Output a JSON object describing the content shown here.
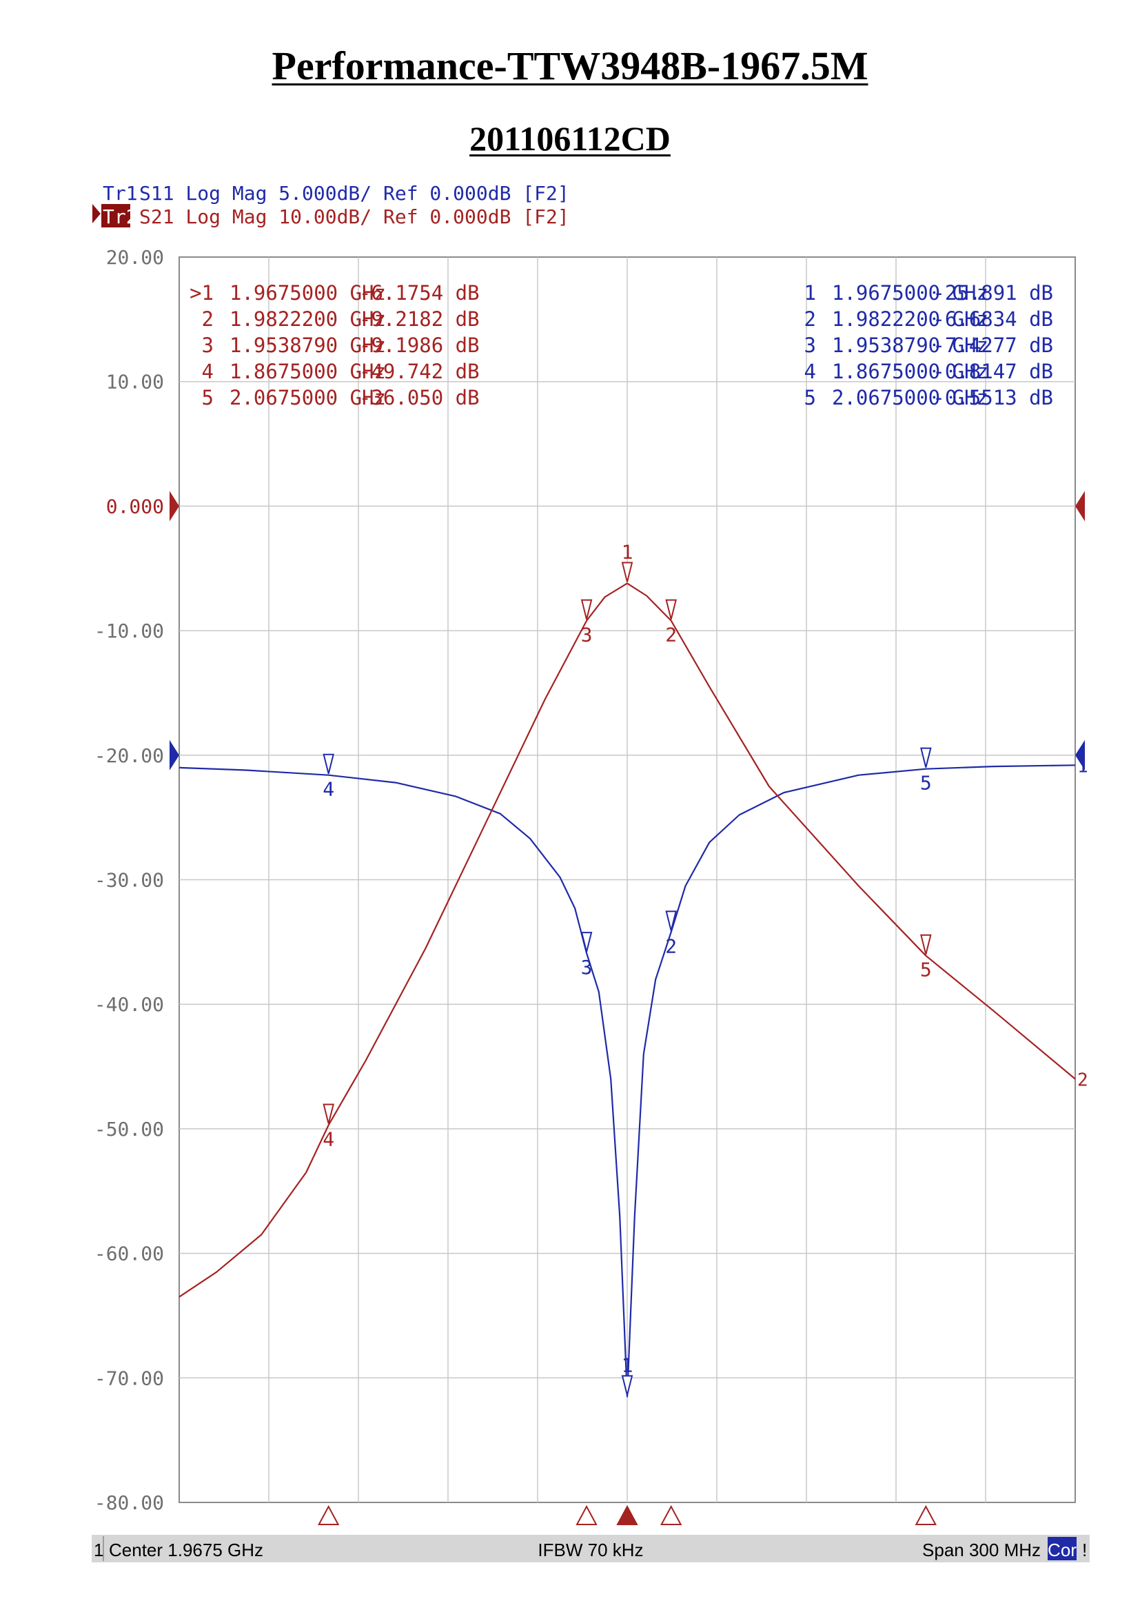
{
  "page": {
    "title": "Performance-TTW3948B-1967.5M",
    "subtitle": "201106112CD"
  },
  "colors": {
    "s11": "#1f2aa8",
    "s21": "#a52222",
    "grid": "#c8c8c8",
    "axis_text": "#6e6e6e",
    "status_bg": "#d6d6d6",
    "active_label_bg": "#8b1010"
  },
  "chart_data": {
    "type": "line",
    "xlabel": "",
    "ylabel": "",
    "x_unit": "GHz",
    "xlim": [
      1.8175,
      2.1175
    ],
    "ylim": [
      -80,
      20
    ],
    "grid": true,
    "yticks": [
      20,
      10,
      0,
      -10,
      -20,
      -30,
      -40,
      -50,
      -60,
      -70,
      -80
    ],
    "ytick_labels": [
      "20.00",
      "10.00",
      "0.000",
      "-10.00",
      "-20.00",
      "-30.00",
      "-40.00",
      "-50.00",
      "-60.00",
      "-70.00",
      "-80.00"
    ],
    "trace_headers": [
      {
        "id": "Tr1",
        "text": "S11 Log Mag 5.000dB/ Ref 0.000dB [F2]",
        "color_key": "s11",
        "active": false
      },
      {
        "id": "Tr2",
        "text": "S21 Log Mag 10.00dB/ Ref 0.000dB [F2]",
        "color_key": "s21",
        "active": true
      }
    ],
    "series": [
      {
        "name": "S11",
        "color_key": "s11",
        "x": [
          1.8175,
          1.84,
          1.8675,
          1.89,
          1.91,
          1.925,
          1.935,
          1.945,
          1.95,
          1.9539,
          1.958,
          1.962,
          1.965,
          1.9675,
          1.97,
          1.973,
          1.977,
          1.9822,
          1.987,
          1.995,
          2.005,
          2.02,
          2.045,
          2.0675,
          2.09,
          2.1175
        ],
        "values": [
          -21.0,
          -21.2,
          -21.6,
          -22.2,
          -23.3,
          -24.7,
          -26.7,
          -29.8,
          -32.3,
          -35.9,
          -39.0,
          -46.0,
          -57.0,
          -71.5,
          -57.0,
          -44.0,
          -38.0,
          -34.2,
          -30.5,
          -27.0,
          -24.8,
          -23.0,
          -21.6,
          -21.1,
          -20.9,
          -20.8
        ]
      },
      {
        "name": "S21",
        "color_key": "s21",
        "x": [
          1.8175,
          1.83,
          1.845,
          1.86,
          1.8675,
          1.88,
          1.9,
          1.92,
          1.94,
          1.9539,
          1.96,
          1.9675,
          1.974,
          1.9822,
          1.995,
          2.015,
          2.045,
          2.0675,
          2.09,
          2.1175
        ],
        "values": [
          -63.5,
          -61.5,
          -58.5,
          -53.5,
          -49.7,
          -44.5,
          -35.5,
          -25.5,
          -15.5,
          -9.2,
          -7.3,
          -6.2,
          -7.2,
          -9.2,
          -14.5,
          -22.5,
          -30.5,
          -36.1,
          -40.5,
          -46.0
        ]
      }
    ],
    "marker_tables": [
      {
        "series": "S21",
        "position": "top-left",
        "rows": [
          {
            "label": ">1",
            "freq": "1.9675000 GHz",
            "value": "-6.1754 dB"
          },
          {
            "label": "2",
            "freq": "1.9822200 GHz",
            "value": "-9.2182 dB"
          },
          {
            "label": "3",
            "freq": "1.9538790 GHz",
            "value": "-9.1986 dB"
          },
          {
            "label": "4",
            "freq": "1.8675000 GHz",
            "value": "-49.742 dB"
          },
          {
            "label": "5",
            "freq": "2.0675000 GHz",
            "value": "-36.050 dB"
          }
        ]
      },
      {
        "series": "S11",
        "position": "top-right",
        "rows": [
          {
            "label": "1",
            "freq": "1.9675000 GHz",
            "value": "-25.891 dB"
          },
          {
            "label": "2",
            "freq": "1.9822200 GHz",
            "value": "-6.6834 dB"
          },
          {
            "label": "3",
            "freq": "1.9538790 GHz",
            "value": "-7.4277 dB"
          },
          {
            "label": "4",
            "freq": "1.8675000 GHz",
            "value": "-0.8147 dB"
          },
          {
            "label": "5",
            "freq": "2.0675000 GHz",
            "value": "-0.5513 dB"
          }
        ]
      }
    ],
    "markers": {
      "S21": [
        {
          "label": "1",
          "x": 1.9675,
          "y": -6.2,
          "side": "above"
        },
        {
          "label": "2",
          "x": 1.9822,
          "y": -9.2,
          "side": "below"
        },
        {
          "label": "3",
          "x": 1.9539,
          "y": -9.2,
          "side": "below"
        },
        {
          "label": "4",
          "x": 1.8675,
          "y": -49.7,
          "side": "below"
        },
        {
          "label": "5",
          "x": 2.0675,
          "y": -36.1,
          "side": "below"
        }
      ],
      "S11": [
        {
          "label": "1",
          "x": 1.9675,
          "y": -71.5,
          "side": "above"
        },
        {
          "label": "2",
          "x": 1.9822,
          "y": -34.2,
          "side": "below"
        },
        {
          "label": "3",
          "x": 1.9539,
          "y": -35.9,
          "side": "below"
        },
        {
          "label": "4",
          "x": 1.8675,
          "y": -21.6,
          "side": "below"
        },
        {
          "label": "5",
          "x": 2.0675,
          "y": -21.1,
          "side": "below"
        }
      ]
    },
    "end_labels": [
      {
        "series": "S11",
        "label": "1"
      },
      {
        "series": "S21",
        "label": "2"
      }
    ],
    "reference_level": 0
  },
  "status_bar": {
    "channel": "1",
    "center": "Center 1.9675 GHz",
    "ifbw": "IFBW 70 kHz",
    "span": "Span 300 MHz",
    "cor": "Cor",
    "flag": "!"
  }
}
